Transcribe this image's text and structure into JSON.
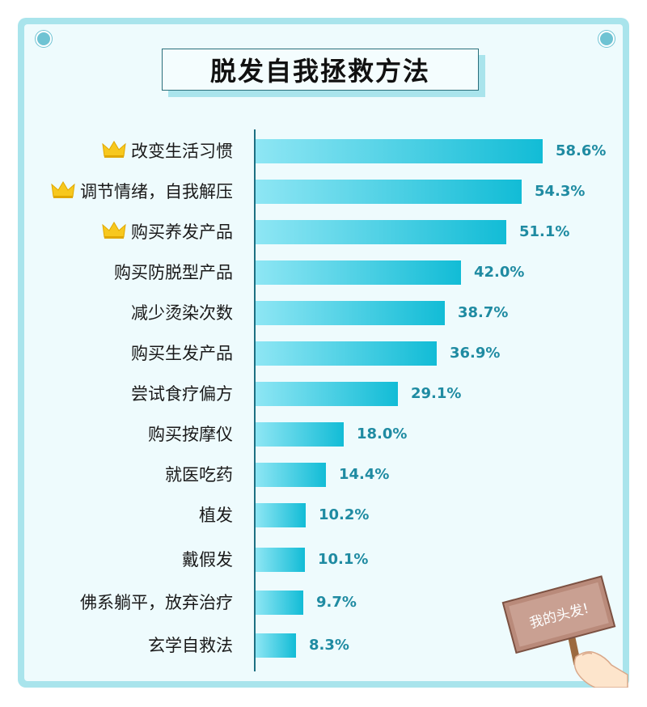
{
  "title": "脱发自我拯救方法",
  "sign_text": "我的头发!",
  "colors": {
    "frame": "#a9e4ec",
    "background": "#eefbfd",
    "bar_start": "#8ee6f4",
    "bar_end": "#12bcd6",
    "value_text": "#1f8ba2",
    "crown": "#f7c81e"
  },
  "icons": [
    "crown-icon",
    "sign-icon",
    "hand-icon"
  ],
  "chart_data": {
    "type": "bar",
    "orientation": "horizontal",
    "title": "脱发自我拯救方法",
    "categories": [
      "改变生活习惯",
      "调节情绪，自我解压",
      "购买养发产品",
      "购买防脱型产品",
      "减少烫染次数",
      "购买生发产品",
      "尝试食疗偏方",
      "购买按摩仪",
      "就医吃药",
      "植发",
      "戴假发",
      "佛系躺平，放弃治疗",
      "玄学自救法"
    ],
    "values": [
      58.6,
      54.3,
      51.1,
      42.0,
      38.7,
      36.9,
      29.1,
      18.0,
      14.4,
      10.2,
      10.1,
      9.7,
      8.3
    ],
    "value_labels": [
      "58.6%",
      "54.3%",
      "51.1%",
      "42.0%",
      "38.7%",
      "36.9%",
      "29.1%",
      "18.0%",
      "14.4%",
      "10.2%",
      "10.1%",
      "9.7%",
      "8.3%"
    ],
    "highlighted_top": 3,
    "unit": "%",
    "xlim": [
      0,
      65
    ],
    "grid": false,
    "legend": "none"
  }
}
